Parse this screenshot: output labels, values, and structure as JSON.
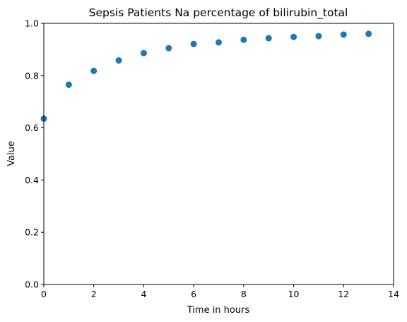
{
  "chart_data": {
    "type": "scatter",
    "title": "Sepsis Patients Na percentage of bilirubin_total",
    "xlabel": "Time in hours",
    "ylabel": "Value",
    "xlim": [
      0,
      14
    ],
    "ylim": [
      0.0,
      1.0
    ],
    "x_ticks": [
      0,
      2,
      4,
      6,
      8,
      10,
      12,
      14
    ],
    "y_ticks": [
      0.0,
      0.2,
      0.4,
      0.6,
      0.8,
      1.0
    ],
    "x_tick_labels": [
      "0",
      "2",
      "4",
      "6",
      "8",
      "10",
      "12",
      "14"
    ],
    "y_tick_labels": [
      "0.0",
      "0.2",
      "0.4",
      "0.6",
      "0.8",
      "1.0"
    ],
    "grid": false,
    "marker_color": "#1f77b4",
    "series": [
      {
        "x": [
          0,
          1,
          2,
          3,
          4,
          5,
          6,
          7,
          8,
          9,
          10,
          11,
          12,
          13
        ],
        "y": [
          0.635,
          0.765,
          0.818,
          0.858,
          0.886,
          0.905,
          0.921,
          0.927,
          0.937,
          0.943,
          0.948,
          0.951,
          0.957,
          0.96
        ]
      }
    ]
  }
}
